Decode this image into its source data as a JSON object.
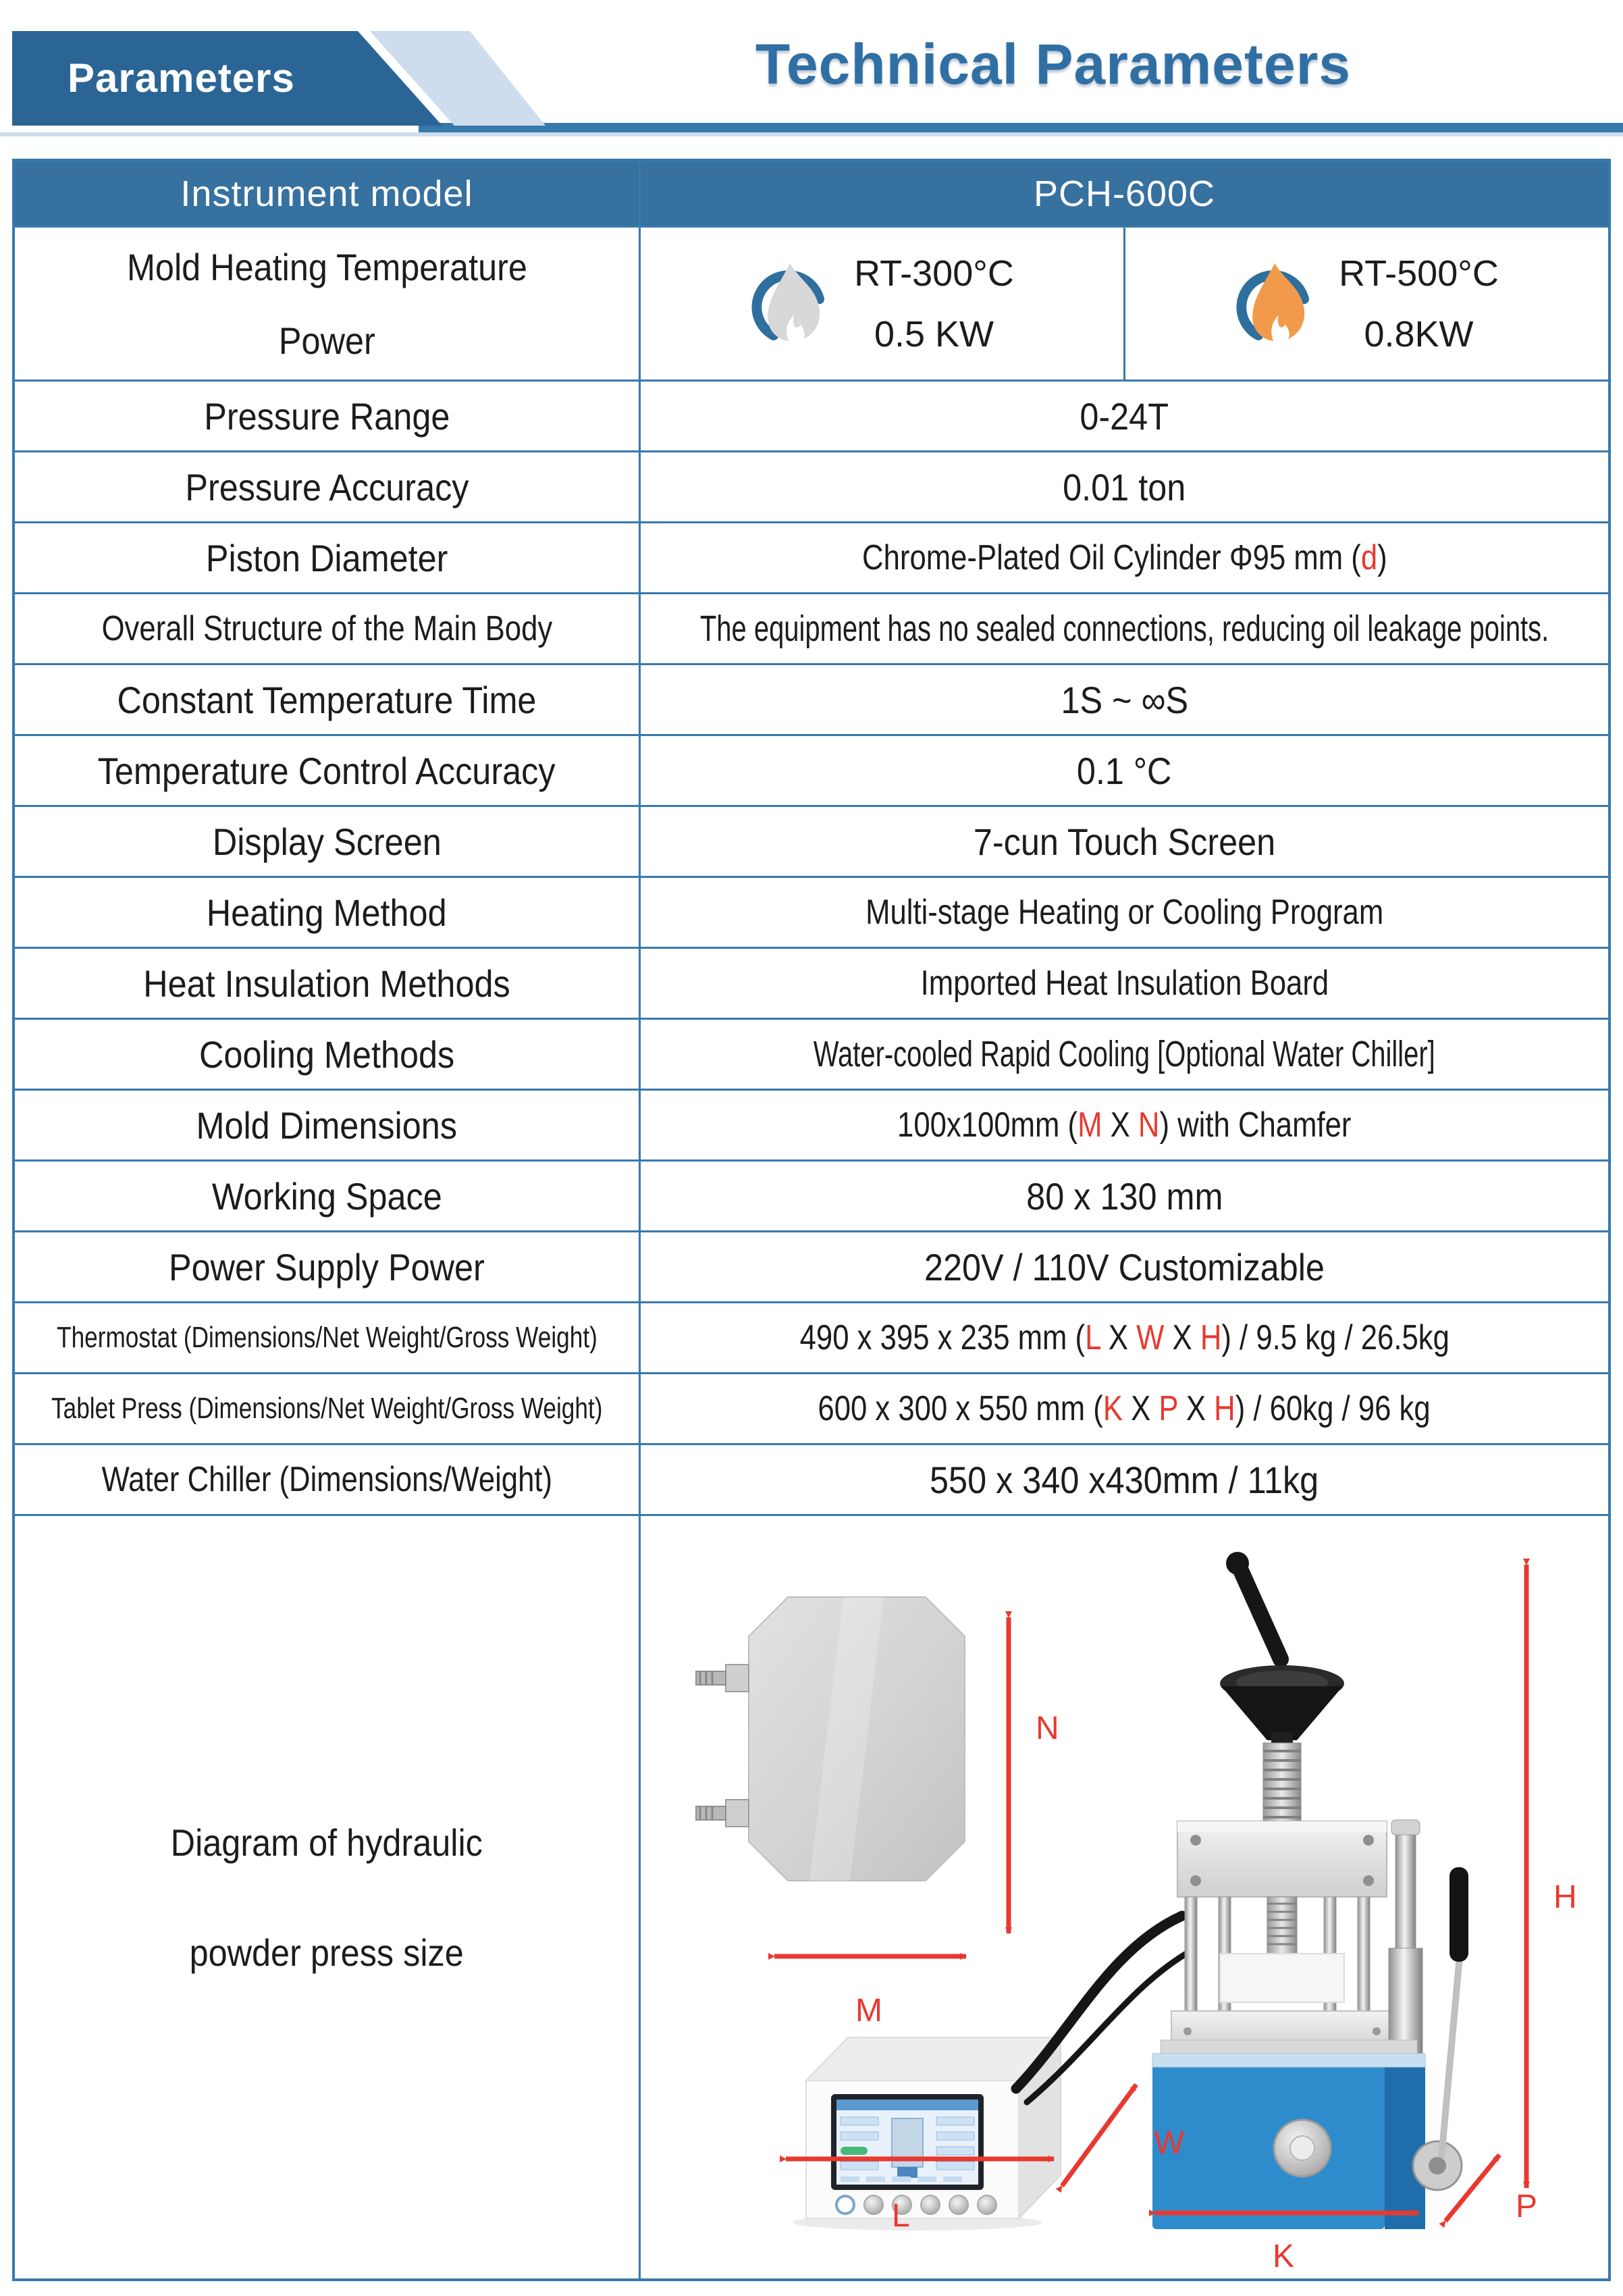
{
  "banner": {
    "tab_label": "Parameters",
    "title": "Technical Parameters"
  },
  "table": {
    "header": {
      "col1": "Instrument model",
      "col2": "PCH-600C"
    },
    "heating_row": {
      "label_line1": "Mold Heating Temperature",
      "label_line2": "Power",
      "options": [
        {
          "icon": "flame-low-icon",
          "temp": "RT-300°C",
          "power": "0.5 KW"
        },
        {
          "icon": "flame-high-icon",
          "temp": "RT-500°C",
          "power": "0.8KW"
        }
      ]
    },
    "rows": [
      {
        "label": "Pressure Range",
        "value": [
          {
            "text": "0-24T"
          }
        ]
      },
      {
        "label": "Pressure Accuracy",
        "value": [
          {
            "text": "0.01 ton"
          }
        ]
      },
      {
        "label": "Piston Diameter",
        "value": [
          {
            "text": "Chrome-Plated Oil Cylinder  Φ95 mm ("
          },
          {
            "text": "d",
            "red": true
          },
          {
            "text": ")"
          }
        ]
      },
      {
        "label": "Overall Structure of the Main Body",
        "value": [
          {
            "text": "The equipment has no sealed connections, reducing oil leakage points."
          }
        ]
      },
      {
        "label": "Constant Temperature Time",
        "value": [
          {
            "text": "1S ~  ∞S"
          }
        ]
      },
      {
        "label": "Temperature Control Accuracy",
        "value": [
          {
            "text": "0.1  °C"
          }
        ]
      },
      {
        "label": "Display Screen",
        "value": [
          {
            "text": "7-cun Touch Screen"
          }
        ]
      },
      {
        "label": "Heating Method",
        "value": [
          {
            "text": "Multi-stage Heating or Cooling Program"
          }
        ]
      },
      {
        "label": "Heat Insulation Methods",
        "value": [
          {
            "text": "Imported Heat Insulation Board"
          }
        ]
      },
      {
        "label": "Cooling Methods",
        "value": [
          {
            "text": "Water-cooled Rapid Cooling [Optional Water Chiller]"
          }
        ]
      },
      {
        "label": "Mold Dimensions",
        "value": [
          {
            "text": "100x100mm ("
          },
          {
            "text": "M",
            "red": true
          },
          {
            "text": " X "
          },
          {
            "text": "N",
            "red": true
          },
          {
            "text": ") with Chamfer"
          }
        ]
      },
      {
        "label": "Working Space",
        "value": [
          {
            "text": "80 x 130 mm"
          }
        ]
      },
      {
        "label": "Power Supply Power",
        "value": [
          {
            "text": "220V / 110V Customizable"
          }
        ]
      },
      {
        "label": "Thermostat (Dimensions/Net Weight/Gross Weight)",
        "value": [
          {
            "text": "490 x 395 x 235 mm ("
          },
          {
            "text": "L",
            "red": true
          },
          {
            "text": " X "
          },
          {
            "text": "W",
            "red": true
          },
          {
            "text": " X "
          },
          {
            "text": "H",
            "red": true
          },
          {
            "text": ") / 9.5 kg / 26.5kg"
          }
        ]
      },
      {
        "label": "Tablet Press (Dimensions/Net Weight/Gross Weight)",
        "value": [
          {
            "text": "600 x 300 x 550 mm ("
          },
          {
            "text": "K",
            "red": true
          },
          {
            "text": " X "
          },
          {
            "text": "P",
            "red": true
          },
          {
            "text": " X "
          },
          {
            "text": "H",
            "red": true
          },
          {
            "text": ") / 60kg / 96 kg"
          }
        ]
      },
      {
        "label": "Water Chiller (Dimensions/Weight)",
        "value": [
          {
            "text": "550 x 340 x430mm / 11kg"
          }
        ]
      }
    ],
    "diagram_row": {
      "label_line1": "Diagram of hydraulic",
      "label_line2": "powder press size",
      "labels": {
        "M": "M",
        "N": "N",
        "L": "L",
        "W": "W",
        "K": "K",
        "P": "P",
        "H": "H"
      }
    }
  },
  "colors": {
    "header_bg": "#36719f",
    "border": "#3779ad",
    "banner_dark": "#2b6595",
    "banner_light": "#cddded",
    "title": "#306fa3",
    "red": "#e8392f",
    "flame_gray": "#d8d8d8",
    "flame_orange": "#f29a4b",
    "flame_crescent": "#2e6f9e"
  }
}
